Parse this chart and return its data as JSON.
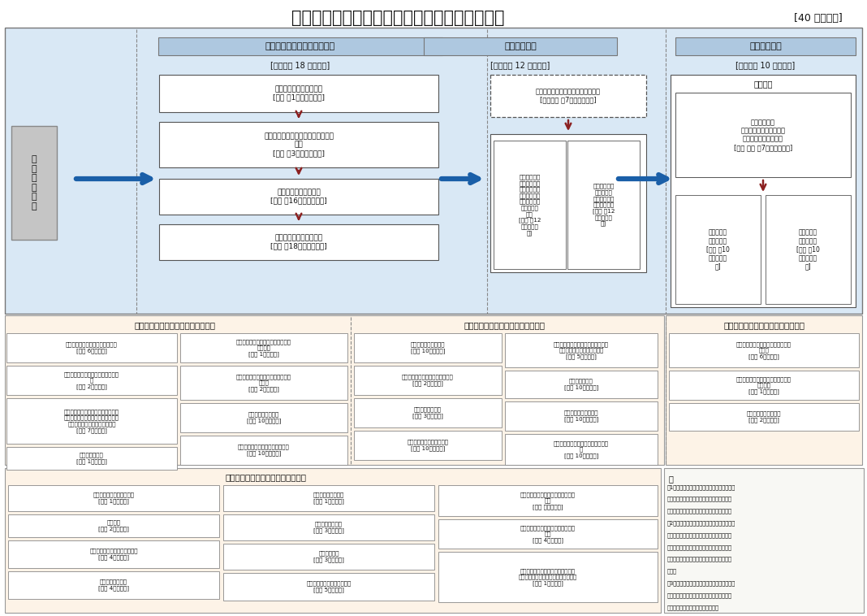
{
  "title": "宁国市工程建设项目审批流程图（工业项目类）",
  "title_note": "[40 个工作日]",
  "bg_color": "#ffffff",
  "top_bg": "#d9e8f5",
  "bottom_bg": "#fdf3e7",
  "phase_hdr_bg": "#aec8e0",
  "note_bg": "#f8f8f4",
  "box_bg": "#ffffff",
  "left_box_bg": "#c5c5c5",
  "arrow_red": "#8B2020",
  "arrow_blue": "#1a5fa8",
  "phase1_label": "立项用地与工程建设许可阶段",
  "phase2_label": "施工许可阶段",
  "phase3_label": "竣工验收阶段",
  "phase1_time": "[审批时限 18 个工作日]",
  "phase2_time": "[审批时限 12 个工作日]",
  "phase3_time": "[审批时限 10 个工作日]",
  "left_label": "项\n目\n策\n划\n生\n成",
  "s1_box1": "企业投资项目核准或备案\n[发改 第1个工作日完成]",
  "s1_box2": "建设用地规划许可证核发（含用地批\n准）\n[资规 第3个工作日完成]",
  "s1_box3": "建设工程设计方案审查\n[资规 第16个工作日完成]",
  "s1_box4": "建设工程规划许可证核发\n[资规 第18个工作日完成]",
  "s2_box1": "施工图设计文件审查（含人防审查）\n[图审机构 第7个工作日完成]",
  "s2_sub1": "新建民用建筑\n防空地下室同\n步修建、易地\n修建审批（含\n人防工程质量\n监督手续办\n理）\n[人防 第12\n个工作日完\n成]",
  "s2_sub2": "建筑工程施工\n许可证核发\n（含质监、安\n监手续办理）\n[住建 第12\n个工作日完\n成]",
  "s3_hdr": "联合验收",
  "s3_inner": "规划条件核实\n建设工程消防验收或备案\n建设工程城建档案验收\n[资规 住建 第7个工作日完成]",
  "s3_bot1": "人防工程竣\n工验收备案\n[人防 第10\n个工作日完\n成]",
  "s3_bot2": "建设工程竣\n工验收备案\n[住建 第10\n个工作日完\n成]",
  "par1_title": "第一阶段可并联或并行办理其他事项",
  "par1_L1": "涉及国家安全事项的建设项目审批\n[国安 6个工作日]",
  "par1_L2": "占用农业灌溉水源、灌排工程设施审\n批\n[水利 2个工作日]",
  "par1_L3": "对建设工程选址不能避开文物保护单\n位而实施就址保护措施的批准（涉及\n国保和省保单位的初审并转报）\n[文保 7个工作日]",
  "par1_L4": "地震安全性评价\n[地震 1个工作日]",
  "par1_R1": "新建、改建、扩建建设工程抗震设防\n要求核定\n[地震 1个工作日]",
  "par1_R2": "新建民用建筑项目防空地下室设计条\n件审批\n[人防 2个工作日]",
  "par1_R3": "建设项目安全预评价\n[应急 10个工作日]",
  "par1_R4": "危险化学品建设项目安全条件审查\n[应急 10个工作日]",
  "par2_title": "第二阶段可并联或并行办理其他事项",
  "par2_L1": "建设工程防治审核确认\n[住建 10个工作日]",
  "par2_L2": "工程建设涉及城市绿地、树木审批\n[城管 2个工作日]",
  "par2_L3": "建设污水处理核准\n[城管 3个工作日]",
  "par2_L4": "建设项目安全设施设计审查\n[应急 10个工作日]",
  "par2_R1": "因工程建设需要拆除、改动、迁移供\n水、排水与污水处理设施审核\n[城管 5个工作日]",
  "par2_R2": "城市设施类审批\n[城管 10个工作日]",
  "par2_R3": "雷电防护装置设计审核\n[气象 10个工作日]",
  "par2_R4": "危险化学品建设项目安全设施设计审\n查\n[应急 10个工作日]",
  "par3_title": "第三阶段可并联或并行办理其他事项",
  "par3_1": "涉及国家安全事项的建设项目审批迁\n移文书\n[国安 6个工作日]",
  "par3_2": "医疗机构放射性职业病危害建设项目\n竣工验收\n[卫健 1个工作日]",
  "par3_3": "雷电防护装置竣工验收\n[气象 2个工作日]",
  "par12_title": "第一、二阶段可并联或并行办理事项",
  "par12_c1r1": "建设项目环境影响评价审批\n[环保 1个工作日]",
  "par12_c1r2": "节能审查\n[发改 2个工作日]",
  "par12_c1r3": "生产建设项目水土保持方案审批\n[水利 4个工作日]",
  "par12_c1r4": "洪水影响评价审批\n[水利 4个工作日]",
  "par12_c2r1": "地质灾害危险性评估\n[资规 1个工作日]",
  "par12_c2r2": "职业病危害预评价\n[卫健 3个工作日]",
  "par12_c2r3": "取水许可审批\n[水利 3个工作日]",
  "par12_c2r4": "古树名木保护方案及移植审批\n[林业 5个工作日]",
  "par12_c3r1": "重大规划、重点工程项目气候可行性\n论证\n[气象 开工前完成]",
  "par12_c3r2": "在江河湖泊新建、改建、扩建排污口\n审批\n[环保 4个工作日]",
  "par12_c3r3": "医疗机构建设项目放射性职业病危害\n预评价报告及卫生审查（危害一般类）\n[卫健 1个工作日]",
  "note_lines": [
    "注",
    "（1）建设项目设计方案审查中由于建设单位修",
    "改方案以及修改后方案复查不符合要求的，其",
    "所占用的时间不计入工程建设项目审批时间。",
    "（2）在工程建设许可阶段，由规划部门牵头，",
    "相关部门和市政公用服务企业，对方案进行联",
    "合技术审查，审查之后进行服务，进行联合技",
    "术指导，对后续施工图设计工作给出技术指导",
    "意见。",
    "（3）阶段可并联或并行办理事项是指可选择并",
    "联申报，也可单独进行申报，但必须在最后明",
    "阶段结束前完成申报、审批的事项。"
  ]
}
